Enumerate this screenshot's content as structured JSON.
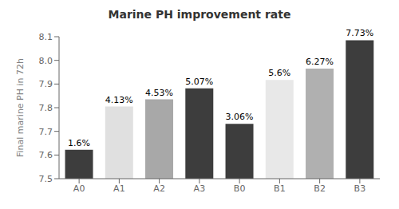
{
  "chart_data": {
    "type": "bar",
    "title": "Marine PH improvement rate",
    "ylabel": "Final marine PH in 72h",
    "categories": [
      "A0",
      "A1",
      "A2",
      "A3",
      "B0",
      "B1",
      "B2",
      "B3"
    ],
    "values": [
      7.622,
      7.805,
      7.835,
      7.882,
      7.732,
      7.917,
      7.965,
      8.085
    ],
    "annotations": [
      "1.6%",
      "4.13%",
      "4.53%",
      "5.07%",
      "3.06%",
      "5.6%",
      "6.27%",
      "7.73%"
    ],
    "colors": [
      "#3d3d3d",
      "#e0e0e0",
      "#a8a8a8",
      "#3d3d3d",
      "#3d3d3d",
      "#e8e8e8",
      "#b0b0b0",
      "#3d3d3d"
    ],
    "ylim": [
      7.5,
      8.1
    ],
    "yticks": [
      7.5,
      7.6,
      7.7,
      7.8,
      7.9,
      {
        "value": 8,
        "label": "8.0"
      },
      8.1
    ],
    "grid": false
  }
}
